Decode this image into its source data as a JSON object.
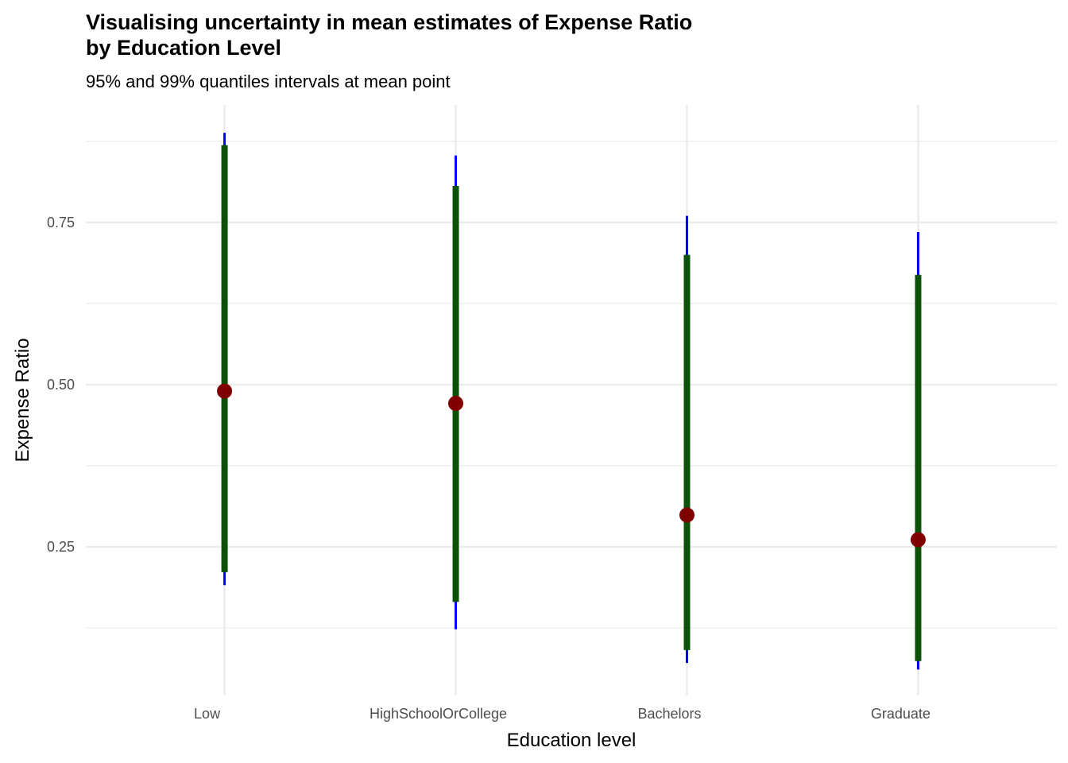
{
  "chart_data": {
    "type": "errorbar",
    "title": "Visualising uncertainty in mean estimates of Expense Ratio",
    "title_line2": "by Education Level",
    "subtitle": "95% and 99% quantiles intervals at mean point",
    "xlabel": "Education level",
    "ylabel": "Expense Ratio",
    "categories": [
      "Low",
      "HighSchoolOrCollege",
      "Bachelors",
      "Graduate"
    ],
    "mean": [
      0.49,
      0.471,
      0.299,
      0.261
    ],
    "ci95": [
      [
        0.211,
        0.869
      ],
      [
        0.165,
        0.806
      ],
      [
        0.091,
        0.7
      ],
      [
        0.074,
        0.669
      ]
    ],
    "ci99": [
      [
        0.191,
        0.888
      ],
      [
        0.123,
        0.853
      ],
      [
        0.071,
        0.76
      ],
      [
        0.061,
        0.735
      ]
    ],
    "yticks": [
      0.25,
      0.5,
      0.75
    ],
    "ytick_labels": [
      "0.25",
      "0.50",
      "0.75"
    ],
    "ylim": [
      0.021,
      0.931
    ],
    "grid": true,
    "colors": {
      "ci99": "#0000ff",
      "ci95": "#0b5208",
      "mean": "#800000",
      "grid": "#ebebeb"
    }
  }
}
